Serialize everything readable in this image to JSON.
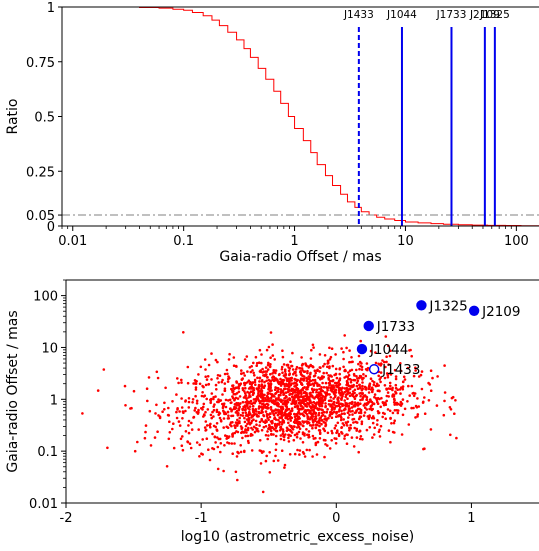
{
  "chart_data": [
    {
      "type": "line",
      "xlabel": "Gaia-radio Offset / mas",
      "ylabel": "Ratio",
      "xscale": "log",
      "xlim": [
        0.008,
        160
      ],
      "ylim": [
        0,
        1
      ],
      "xticks": [
        0.01,
        0.1,
        1,
        10,
        100
      ],
      "xtick_labels": [
        "0.01",
        "0.1",
        "1",
        "10",
        "100"
      ],
      "yticks": [
        0,
        0.05,
        0.25,
        0.5,
        0.75,
        1
      ],
      "ytick_labels": [
        "0",
        "0.05",
        "0.25",
        "0.5",
        "0.75",
        "1"
      ],
      "series": [
        {
          "color": "#ff0000",
          "x": [
            0.008,
            0.04,
            0.06,
            0.08,
            0.1,
            0.12,
            0.15,
            0.18,
            0.21,
            0.25,
            0.3,
            0.35,
            0.4,
            0.47,
            0.55,
            0.65,
            0.75,
            0.88,
            1.0,
            1.2,
            1.4,
            1.6,
            1.9,
            2.2,
            2.6,
            3.0,
            3.5,
            4.0,
            4.7,
            5.5,
            6.5,
            8.0,
            10,
            13,
            17,
            22,
            30,
            40,
            55,
            80,
            110,
            160
          ],
          "y": [
            1.0,
            0.998,
            0.995,
            0.99,
            0.985,
            0.975,
            0.96,
            0.94,
            0.915,
            0.885,
            0.85,
            0.81,
            0.77,
            0.72,
            0.67,
            0.615,
            0.56,
            0.5,
            0.445,
            0.39,
            0.335,
            0.28,
            0.23,
            0.185,
            0.145,
            0.11,
            0.085,
            0.065,
            0.05,
            0.04,
            0.032,
            0.025,
            0.018,
            0.014,
            0.011,
            0.008,
            0.006,
            0.004,
            0.003,
            0.002,
            0.001,
            0.0
          ]
        }
      ],
      "hline": {
        "y": 0.05,
        "color": "#808080",
        "style": "dash-dot"
      },
      "vlines": [
        {
          "label": "J1433",
          "x": 3.8,
          "style": "dashed",
          "color": "#0000ee"
        },
        {
          "label": "J1044",
          "x": 9.3,
          "style": "solid",
          "color": "#0000ee"
        },
        {
          "label": "J1733",
          "x": 26,
          "style": "solid",
          "color": "#0000ee"
        },
        {
          "label": "J2109",
          "x": 52,
          "style": "solid",
          "color": "#0000ee"
        },
        {
          "label": "J1325",
          "x": 64,
          "style": "solid",
          "color": "#0000ee"
        }
      ]
    },
    {
      "type": "scatter",
      "xlabel": "log10 (astrometric_excess_noise)",
      "ylabel": "Gaia-radio Offset / mas",
      "yscale": "log",
      "xlim": [
        -2,
        1.5
      ],
      "ylim": [
        0.01,
        200
      ],
      "xticks": [
        -2,
        -1,
        0,
        1
      ],
      "xtick_labels": [
        "-2",
        "-1",
        "0",
        "1"
      ],
      "yticks": [
        0.01,
        0.1,
        1,
        10,
        100
      ],
      "ytick_labels": [
        "0.01",
        "0.1",
        "1",
        "10",
        "100"
      ],
      "background_points": {
        "count": 2200,
        "color": "#ff0000",
        "note_values": "scatter cloud centred near x=-0.3, y=1"
      },
      "highlighted": [
        {
          "label": "J1325",
          "x": 0.63,
          "y": 65,
          "filled": true,
          "color": "#0000ee"
        },
        {
          "label": "J2109",
          "x": 1.02,
          "y": 51,
          "filled": true,
          "color": "#0000ee"
        },
        {
          "label": "J1733",
          "x": 0.24,
          "y": 26,
          "filled": true,
          "color": "#0000ee"
        },
        {
          "label": "J1044",
          "x": 0.19,
          "y": 9.3,
          "filled": true,
          "color": "#0000ee"
        },
        {
          "label": "J1433",
          "x": 0.28,
          "y": 3.8,
          "filled": false,
          "color": "#0000ee"
        }
      ]
    }
  ]
}
